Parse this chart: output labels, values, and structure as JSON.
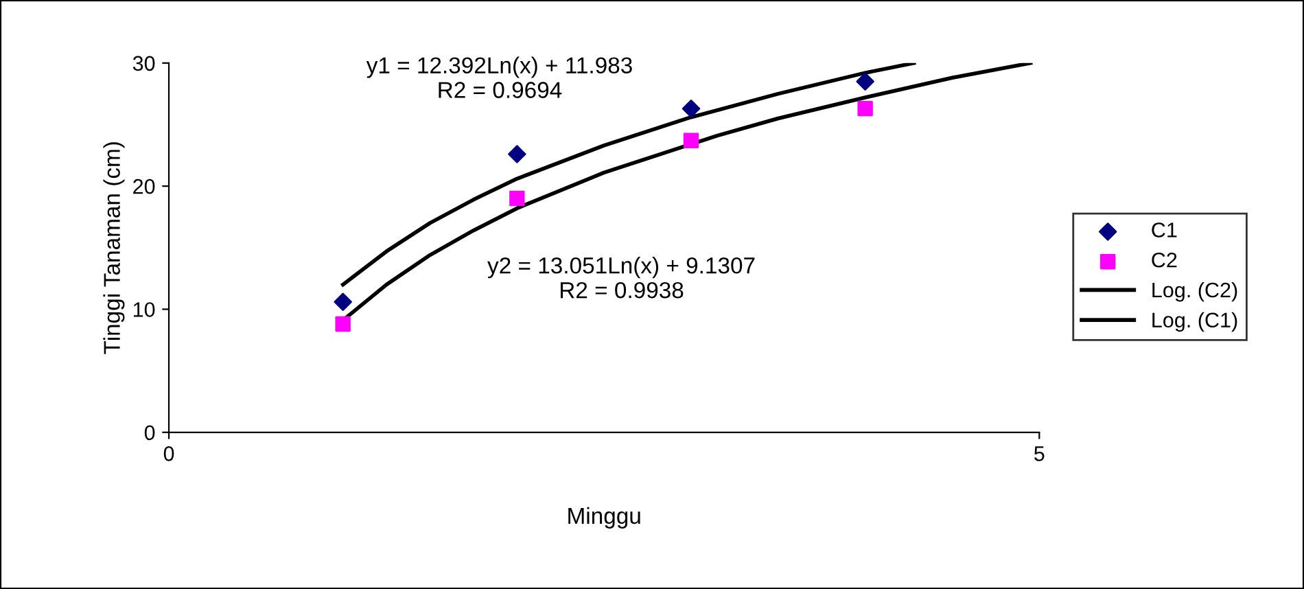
{
  "chart_data": {
    "type": "scatter",
    "xlabel": "Minggu",
    "ylabel": "Tinggi Tanaman (cm)",
    "xlim": [
      0,
      5
    ],
    "xticks": [
      0,
      5
    ],
    "ylim": [
      0,
      30
    ],
    "yticks": [
      0,
      10,
      20,
      30
    ],
    "grid": false,
    "legend": "right",
    "series": [
      {
        "name": "C1",
        "color": "#000080",
        "marker": "diamond",
        "x": [
          1,
          2,
          3,
          4
        ],
        "values": [
          10.6,
          22.6,
          26.3,
          28.5
        ]
      },
      {
        "name": "C2",
        "color": "#ff00ff",
        "marker": "square",
        "x": [
          1,
          2,
          3,
          4
        ],
        "values": [
          8.8,
          19.0,
          23.7,
          26.3
        ]
      },
      {
        "name": "Log. (C2)",
        "type": "line",
        "color": "#000000",
        "marker": "none",
        "line_style": "solid",
        "x": [
          1,
          1.25,
          1.5,
          1.75,
          2,
          2.5,
          3.15,
          3.5,
          4,
          4.5,
          4.95
        ],
        "values": [
          9.1,
          12.0,
          14.4,
          16.4,
          18.2,
          21.1,
          24.1,
          25.5,
          27.2,
          28.8,
          30
        ]
      },
      {
        "name": "Log. (C1)",
        "type": "line",
        "color": "#000000",
        "marker": "none",
        "line_style": "solid",
        "x": [
          1,
          1.25,
          1.5,
          1.75,
          2,
          2.5,
          3,
          3.5,
          4,
          4.28
        ],
        "values": [
          12.0,
          14.7,
          17.0,
          18.9,
          20.6,
          23.3,
          25.6,
          27.5,
          29.2,
          30
        ]
      }
    ],
    "annotations": [
      "y1 = 12.392Ln(x) + 11.983\nR2 = 0.9694",
      "y2 = 13.051Ln(x) + 9.1307\nR2 = 0.9938"
    ]
  }
}
